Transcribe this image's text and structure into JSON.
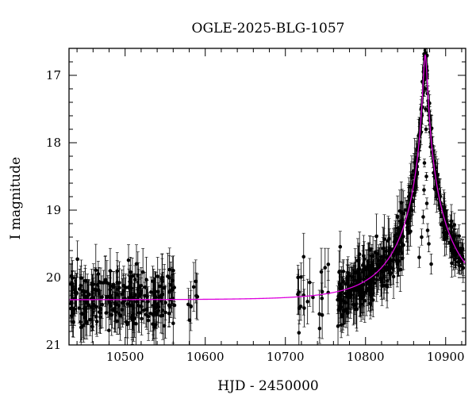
{
  "chart_data": {
    "type": "scatter",
    "title": "OGLE-2025-BLG-1057",
    "xlabel": "HJD - 2450000",
    "ylabel": "I magnitude",
    "xlim": [
      10430,
      10925
    ],
    "ylim": [
      21,
      16.6
    ],
    "y_inverted": true,
    "x_ticks": [
      10500,
      10600,
      10700,
      10800,
      10900
    ],
    "y_ticks": [
      17,
      18,
      19,
      20,
      21
    ],
    "grid": false,
    "legend": "none",
    "colors": {
      "points": "#000000",
      "model": "#dd00dd"
    },
    "baseline_mag": 20.33,
    "observing_seasons": [
      {
        "start": 10432,
        "end": 10562,
        "count": 260,
        "base": 20.33,
        "scatter": 0.2,
        "err": 0.3
      },
      {
        "start": 10575,
        "end": 10610,
        "count": 8,
        "base": 20.33,
        "scatter": 0.25,
        "err": 0.3
      },
      {
        "start": 10715,
        "end": 10755,
        "count": 22,
        "base": 20.32,
        "scatter": 0.3,
        "err": 0.3
      },
      {
        "start": 10765,
        "end": 10862,
        "count": 300,
        "base": 20.3,
        "scatter": 0.2,
        "err": 0.28
      },
      {
        "start": 10862,
        "end": 10922,
        "count": 200,
        "base": 20.2,
        "scatter": 0.12,
        "err": 0.2
      }
    ],
    "model": {
      "name": "",
      "t0": 10874.5,
      "peak_mag": 16.7,
      "baseline_mag": 20.33,
      "tE": 70,
      "u0": 0.035
    },
    "peak_points": [
      {
        "x": 10874,
        "y": 17.0,
        "err": 0.04
      },
      {
        "x": 10874.5,
        "y": 17.2,
        "err": 0.04
      },
      {
        "x": 10875,
        "y": 17.5,
        "err": 0.04
      },
      {
        "x": 10875.5,
        "y": 17.8,
        "err": 0.05
      },
      {
        "x": 10873.5,
        "y": 18.3,
        "err": 0.06
      },
      {
        "x": 10876,
        "y": 18.5,
        "err": 0.06
      },
      {
        "x": 10873,
        "y": 18.7,
        "err": 0.07
      },
      {
        "x": 10876.5,
        "y": 18.9,
        "err": 0.08
      },
      {
        "x": 10872,
        "y": 19.1,
        "err": 0.1
      },
      {
        "x": 10877.5,
        "y": 19.3,
        "err": 0.1
      },
      {
        "x": 10870,
        "y": 19.4,
        "err": 0.12
      },
      {
        "x": 10879,
        "y": 19.5,
        "err": 0.12
      },
      {
        "x": 10867,
        "y": 19.7,
        "err": 0.15
      },
      {
        "x": 10882,
        "y": 19.8,
        "err": 0.15
      }
    ]
  }
}
